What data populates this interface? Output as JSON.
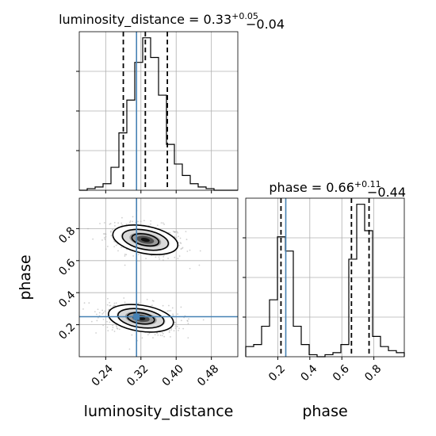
{
  "chart_data": {
    "type": "corner",
    "parameters": [
      "luminosity_distance",
      "phase"
    ],
    "truths": {
      "luminosity_distance": 0.31,
      "phase": 0.25
    },
    "grid": true,
    "panels": [
      {
        "kind": "histogram",
        "parameter": "luminosity_distance",
        "title_main": "luminosity_distance = 0.33",
        "title_sup": "+0.05",
        "title_sub": "−0.04",
        "median": 0.33,
        "quantiles": [
          0.28,
          0.33,
          0.38
        ],
        "xlim": [
          0.18,
          0.54
        ],
        "bin_edges": [
          0.18,
          0.198,
          0.216,
          0.234,
          0.252,
          0.27,
          0.288,
          0.306,
          0.324,
          0.342,
          0.36,
          0.378,
          0.396,
          0.414,
          0.432,
          0.45,
          0.468,
          0.486,
          0.504,
          0.522,
          0.54
        ],
        "counts": [
          0,
          1,
          2,
          4,
          14,
          35,
          55,
          78,
          93,
          81,
          58,
          28,
          16,
          9,
          4,
          2,
          1,
          0,
          0,
          0
        ]
      },
      {
        "kind": "histogram",
        "parameter": "phase",
        "title_main": "phase = 0.66",
        "title_sup": "+0.11",
        "title_sub": "−0.44",
        "median": 0.66,
        "quantiles": [
          0.22,
          0.66,
          0.77
        ],
        "xlim": [
          0.0,
          0.99
        ],
        "bin_edges": [
          0.0,
          0.0495,
          0.099,
          0.1485,
          0.198,
          0.2475,
          0.297,
          0.3465,
          0.396,
          0.4455,
          0.495,
          0.5445,
          0.594,
          0.6435,
          0.693,
          0.7425,
          0.792,
          0.8415,
          0.891,
          0.9405,
          0.99
        ],
        "counts": [
          5,
          6,
          15,
          28,
          59,
          52,
          15,
          6,
          1,
          0,
          1,
          2,
          6,
          48,
          75,
          62,
          10,
          5,
          3,
          2
        ]
      },
      {
        "kind": "density2d",
        "x_parameter": "luminosity_distance",
        "y_parameter": "phase",
        "xlim": [
          0.18,
          0.54
        ],
        "ylim": [
          0.0,
          0.99
        ],
        "modes": [
          {
            "x": 0.33,
            "y": 0.73,
            "sx": 0.036,
            "sy": 0.045,
            "rho": -0.35
          },
          {
            "x": 0.32,
            "y": 0.24,
            "sx": 0.036,
            "sy": 0.042,
            "rho": -0.3
          }
        ]
      }
    ],
    "axes": {
      "xlabel_left": "luminosity_distance",
      "xlabel_right": "phase",
      "ylabel": "phase",
      "dist_ticks": [
        0.24,
        0.32,
        0.4,
        0.48
      ],
      "dist_tick_labels": [
        "0.24",
        "0.32",
        "0.40",
        "0.48"
      ],
      "phase_ticks": [
        0.2,
        0.4,
        0.6,
        0.8
      ],
      "phase_tick_labels": [
        "0.2",
        "0.4",
        "0.6",
        "0.8"
      ]
    },
    "colors": {
      "truth": "#4682b4",
      "line": "#000000",
      "scatter": "#a9a9a9",
      "grid": "#b0b0b0"
    }
  }
}
